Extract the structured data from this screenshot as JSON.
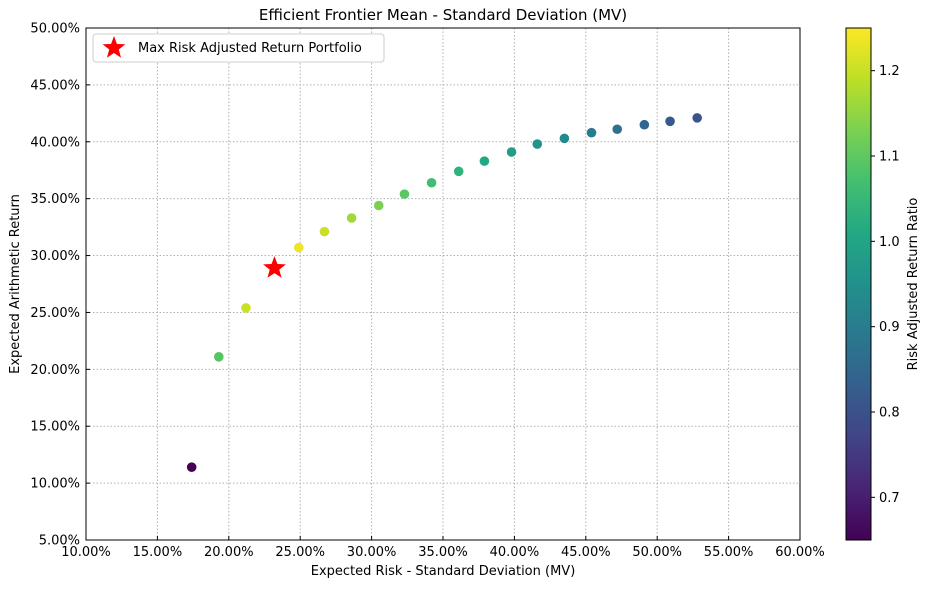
{
  "chart_data": {
    "type": "scatter",
    "title": "Efficient Frontier Mean - Standard Deviation (MV)",
    "xlabel": "Expected Risk - Standard Deviation (MV)",
    "ylabel": "Expected Arithmetic Return",
    "xlim": [
      0.1,
      0.6
    ],
    "ylim": [
      0.05,
      0.5
    ],
    "x_ticks": [
      0.1,
      0.15,
      0.2,
      0.25,
      0.3,
      0.35,
      0.4,
      0.45,
      0.5,
      0.55,
      0.6
    ],
    "x_tick_labels": [
      "10.00%",
      "15.00%",
      "20.00%",
      "25.00%",
      "30.00%",
      "35.00%",
      "40.00%",
      "45.00%",
      "50.00%",
      "55.00%",
      "60.00%"
    ],
    "y_ticks": [
      0.05,
      0.1,
      0.15,
      0.2,
      0.25,
      0.3,
      0.35,
      0.4,
      0.45,
      0.5
    ],
    "y_tick_labels": [
      "5.00%",
      "10.00%",
      "15.00%",
      "20.00%",
      "25.00%",
      "30.00%",
      "35.00%",
      "40.00%",
      "45.00%",
      "50.00%"
    ],
    "grid": true,
    "legend_position": "top-left",
    "colormap": "viridis",
    "colorbar": {
      "label": "Risk Adjusted Return Ratio",
      "range": [
        0.65,
        1.25
      ],
      "ticks": [
        0.7,
        0.8,
        0.9,
        1.0,
        1.1,
        1.2
      ],
      "tick_labels": [
        "0.7",
        "0.8",
        "0.9",
        "1.0",
        "1.1",
        "1.2"
      ]
    },
    "points": [
      {
        "x": 0.174,
        "y": 0.114,
        "ratio": 0.654
      },
      {
        "x": 0.193,
        "y": 0.211,
        "ratio": 1.09
      },
      {
        "x": 0.212,
        "y": 0.254,
        "ratio": 1.2
      },
      {
        "x": 0.249,
        "y": 0.307,
        "ratio": 1.235
      },
      {
        "x": 0.267,
        "y": 0.321,
        "ratio": 1.2
      },
      {
        "x": 0.286,
        "y": 0.333,
        "ratio": 1.165
      },
      {
        "x": 0.305,
        "y": 0.344,
        "ratio": 1.13
      },
      {
        "x": 0.323,
        "y": 0.354,
        "ratio": 1.095
      },
      {
        "x": 0.342,
        "y": 0.364,
        "ratio": 1.065
      },
      {
        "x": 0.361,
        "y": 0.374,
        "ratio": 1.035
      },
      {
        "x": 0.379,
        "y": 0.383,
        "ratio": 1.01
      },
      {
        "x": 0.398,
        "y": 0.391,
        "ratio": 0.985
      },
      {
        "x": 0.416,
        "y": 0.398,
        "ratio": 0.955
      },
      {
        "x": 0.435,
        "y": 0.403,
        "ratio": 0.93
      },
      {
        "x": 0.454,
        "y": 0.408,
        "ratio": 0.9
      },
      {
        "x": 0.472,
        "y": 0.411,
        "ratio": 0.87
      },
      {
        "x": 0.491,
        "y": 0.415,
        "ratio": 0.845
      },
      {
        "x": 0.509,
        "y": 0.418,
        "ratio": 0.82
      },
      {
        "x": 0.528,
        "y": 0.421,
        "ratio": 0.8
      }
    ],
    "highlight": {
      "label": "Max Risk Adjusted Return Portfolio",
      "x": 0.232,
      "y": 0.289,
      "marker": "star",
      "color": "#ff0000"
    }
  }
}
